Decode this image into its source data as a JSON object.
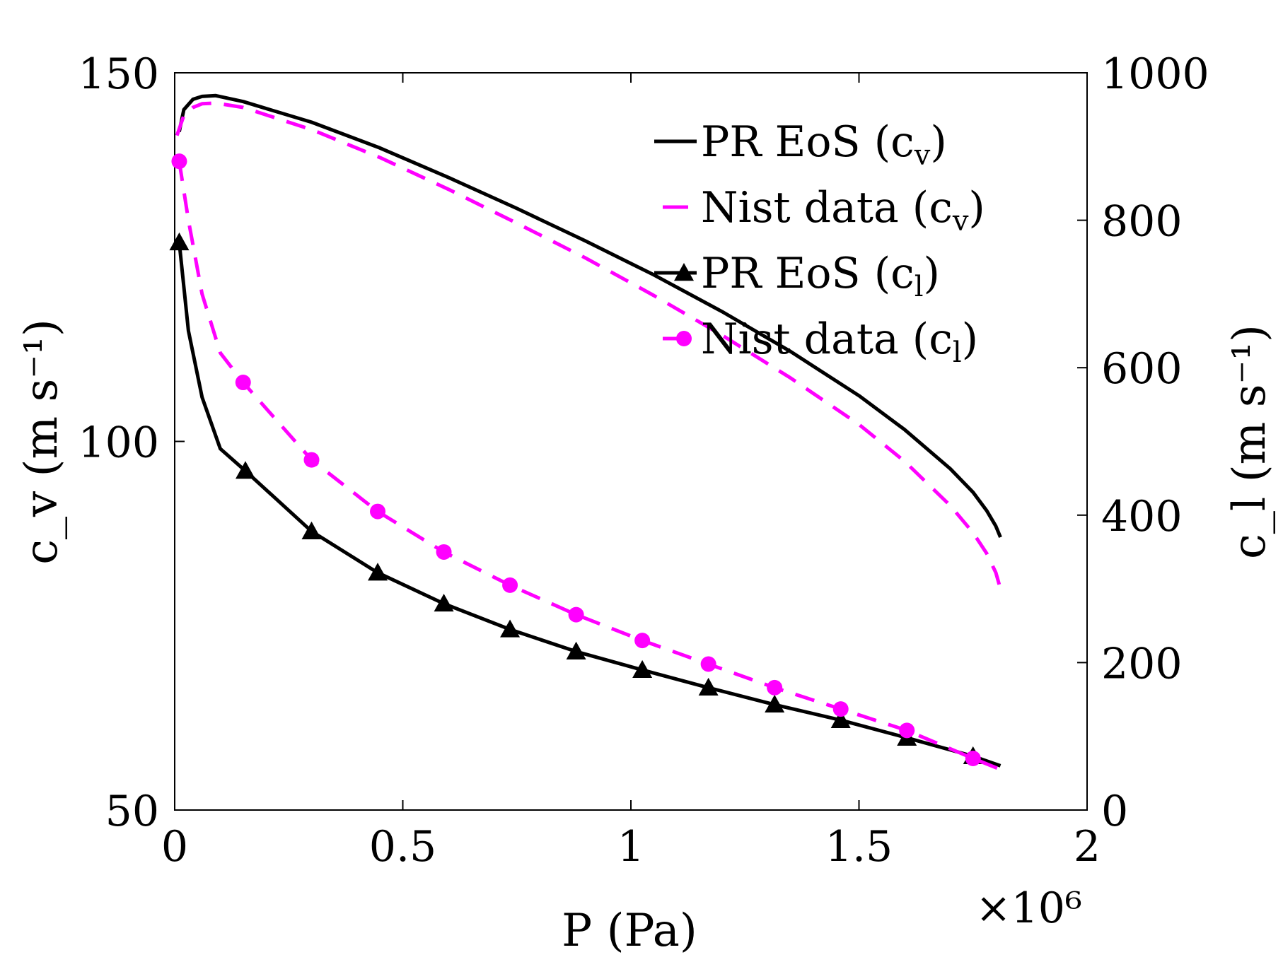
{
  "chart_data": {
    "type": "line",
    "xlabel": "P (Pa)",
    "x_multiplier_label": "×10⁶",
    "ylabel_left": "c_v (m s⁻¹)",
    "ylabel_right": "c_l (m s⁻¹)",
    "xlim": [
      0,
      2
    ],
    "ylim_left": [
      50,
      150
    ],
    "ylim_right": [
      0,
      1000
    ],
    "x_ticks": [
      "0",
      "0.5",
      "1",
      "1.5",
      "2"
    ],
    "y_left_ticks": [
      "50",
      "100",
      "150"
    ],
    "y_right_ticks": [
      "0",
      "200",
      "400",
      "600",
      "800",
      "1000"
    ],
    "x_units_scale": 1000000,
    "colors": {
      "pr": "#000000",
      "nist": "#ff00ff"
    },
    "legend_position": "top-right",
    "series": [
      {
        "name": "PR EoS (c_v)",
        "legend_main": "PR EoS (c",
        "legend_sub": "v",
        "legend_close": ")",
        "axis": "left",
        "style": "solid",
        "marker": "none",
        "color": "#000000",
        "x": [
          0.01,
          0.02,
          0.04,
          0.06,
          0.09,
          0.15,
          0.3,
          0.45,
          0.6,
          0.75,
          0.9,
          1.05,
          1.2,
          1.35,
          1.5,
          1.6,
          1.7,
          1.75,
          1.78,
          1.8,
          1.81
        ],
        "y": [
          142,
          145,
          146.4,
          146.8,
          146.9,
          146.1,
          143.3,
          139.8,
          135.8,
          131.6,
          127.2,
          122.6,
          117.6,
          112.2,
          106.2,
          101.6,
          96.3,
          93.1,
          90.6,
          88.5,
          87
        ]
      },
      {
        "name": "Nist data (c_v)",
        "legend_main": "Nist data (c",
        "legend_sub": "v",
        "legend_close": ")",
        "axis": "left",
        "style": "dashed",
        "marker": "none",
        "color": "#ff00ff",
        "x": [
          0.005,
          0.02,
          0.04,
          0.06,
          0.09,
          0.15,
          0.3,
          0.45,
          0.6,
          0.75,
          0.9,
          1.05,
          1.2,
          1.35,
          1.5,
          1.6,
          1.7,
          1.75,
          1.78,
          1.8,
          1.81
        ],
        "y": [
          141.5,
          144.2,
          145.3,
          145.8,
          145.9,
          145.3,
          142.3,
          138.5,
          134.2,
          129.6,
          124.9,
          119.8,
          114.4,
          108.6,
          102.3,
          97.3,
          91.3,
          87.6,
          84.8,
          82.2,
          80
        ]
      },
      {
        "name": "PR EoS (c_l)",
        "legend_main": "PR EoS (c",
        "legend_sub": "l",
        "legend_close": ")",
        "axis": "right",
        "style": "solid",
        "marker": "triangle",
        "color": "#000000",
        "x": [
          0.01,
          0.03,
          0.06,
          0.1,
          0.155,
          0.3,
          0.445,
          0.59,
          0.735,
          0.88,
          1.025,
          1.17,
          1.315,
          1.46,
          1.605,
          1.75,
          1.81
        ],
        "y": [
          770,
          650,
          560,
          490,
          460,
          378,
          322,
          280,
          245,
          215,
          190,
          166,
          143,
          122,
          98,
          73,
          60
        ],
        "marker_x": [
          0.01,
          0.155,
          0.3,
          0.445,
          0.59,
          0.735,
          0.88,
          1.025,
          1.17,
          1.315,
          1.46,
          1.605,
          1.75
        ],
        "marker_y": [
          770,
          460,
          378,
          322,
          280,
          245,
          215,
          190,
          166,
          143,
          122,
          98,
          73
        ]
      },
      {
        "name": "Nist data (c_l)",
        "legend_main": "Nist data (c",
        "legend_sub": "l",
        "legend_close": ")",
        "axis": "right",
        "style": "dashed",
        "marker": "circle",
        "color": "#ff00ff",
        "x": [
          0.01,
          0.03,
          0.06,
          0.1,
          0.15,
          0.3,
          0.445,
          0.59,
          0.735,
          0.88,
          1.025,
          1.17,
          1.315,
          1.46,
          1.605,
          1.75,
          1.81
        ],
        "y": [
          880,
          800,
          700,
          620,
          580,
          475,
          405,
          350,
          305,
          265,
          230,
          198,
          166,
          137,
          108,
          70,
          55
        ],
        "marker_x": [
          0.01,
          0.15,
          0.3,
          0.445,
          0.59,
          0.735,
          0.88,
          1.025,
          1.17,
          1.315,
          1.46,
          1.605,
          1.75
        ],
        "marker_y": [
          880,
          580,
          475,
          405,
          350,
          305,
          265,
          230,
          198,
          166,
          137,
          108,
          70
        ]
      }
    ]
  }
}
